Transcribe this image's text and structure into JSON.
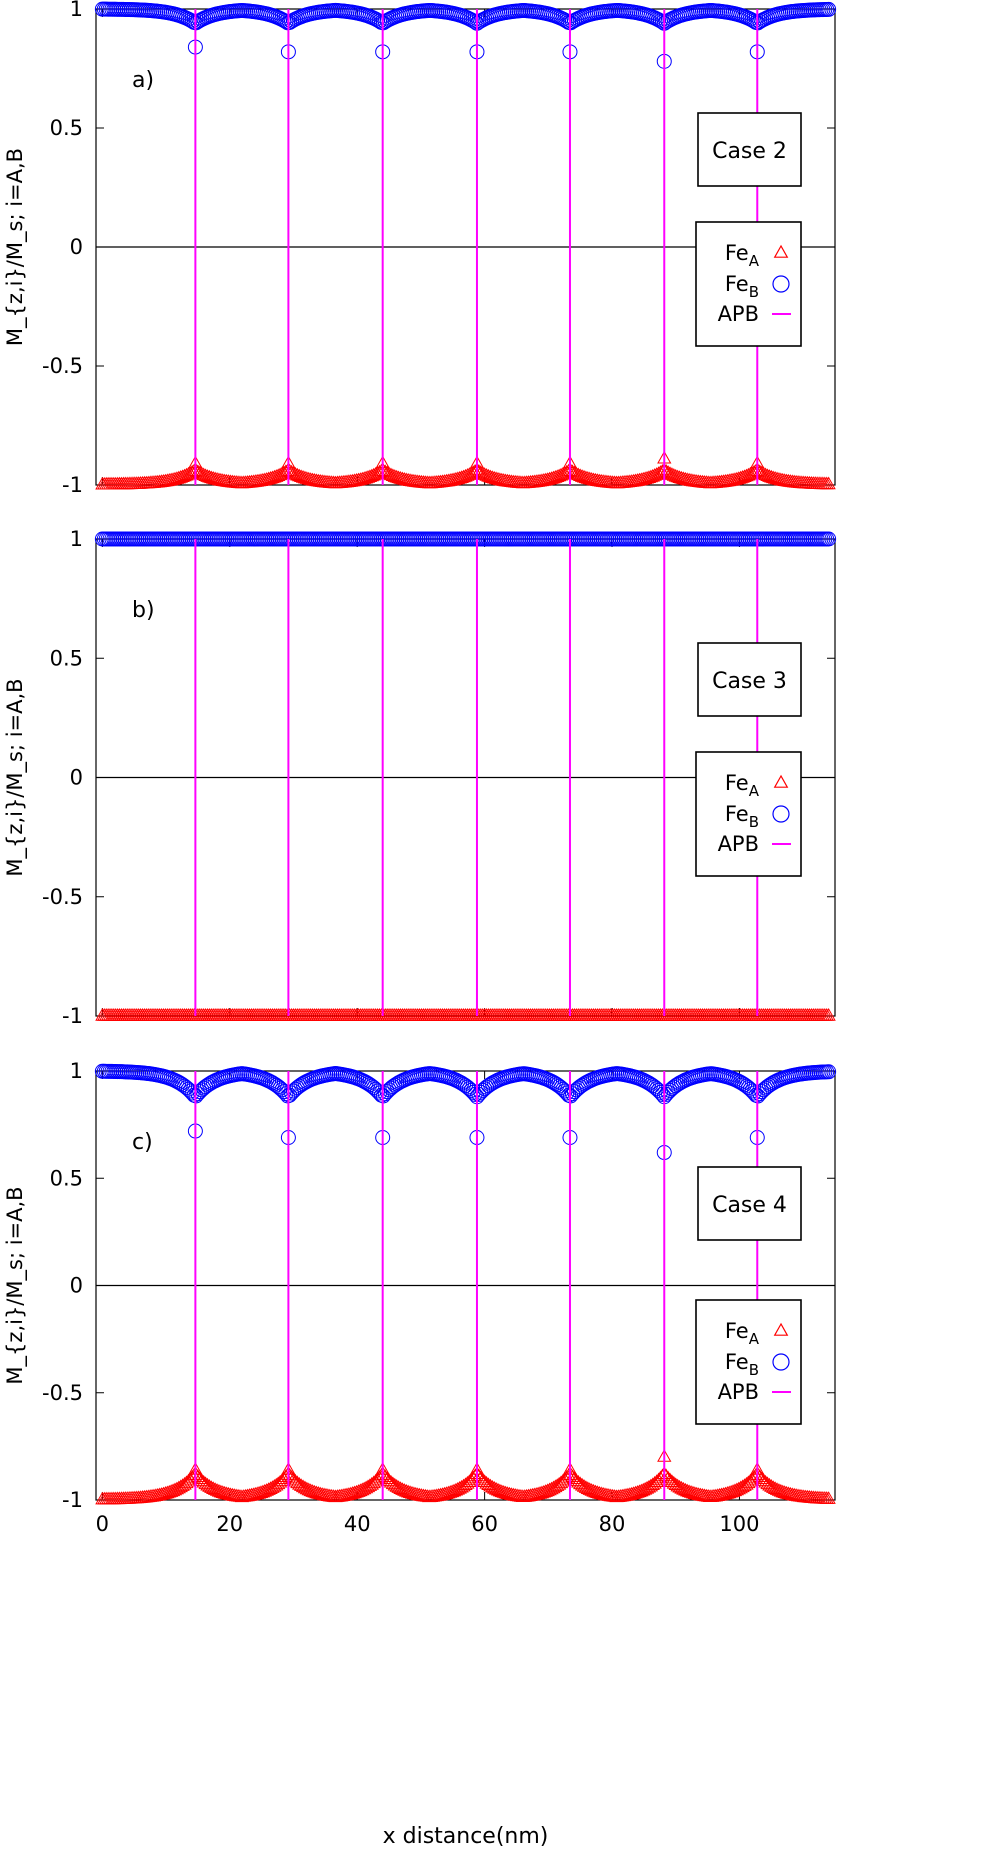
{
  "chart_data": [
    {
      "type": "scatter",
      "panel_label": "a)",
      "case_label": "Case 2",
      "ylabel": "M_{z,i}/M_s;  i=A,B",
      "xlabel": "",
      "xlim": [
        -1,
        115
      ],
      "ylim": [
        -1,
        1
      ],
      "xticks": [],
      "yticks": [
        -1,
        -0.5,
        0,
        0.5,
        1
      ],
      "ytick_labels": [
        "-1",
        "-0.5",
        "0",
        "0.5",
        "1"
      ],
      "apb_x": [
        14.6,
        29.2,
        44.0,
        58.8,
        73.4,
        88.2,
        102.8
      ],
      "zero_line": true,
      "series": [
        {
          "name": "Fe",
          "sub": "A",
          "marker": "triangle",
          "color": "#ff0000",
          "base": -1,
          "dip": 0.06,
          "apb_point": 0.09,
          "apb_off": {
            "5": 0.11
          }
        },
        {
          "name": "Fe",
          "sub": "B",
          "marker": "circle",
          "color": "#0000ff",
          "base": 1,
          "dip": 0.06,
          "apb_point": 0.18,
          "apb_off": {
            "0": 0.16,
            "5": 0.22
          }
        },
        {
          "name": "APB",
          "marker": "line",
          "color": "#ff00ff"
        }
      ]
    },
    {
      "type": "scatter",
      "panel_label": "b)",
      "case_label": "Case 3",
      "ylabel": "M_{z,i}/M_s;  i=A,B",
      "xlabel": "",
      "xlim": [
        -1,
        115
      ],
      "ylim": [
        -1,
        1
      ],
      "xticks": [],
      "yticks": [
        -1,
        -0.5,
        0,
        0.5,
        1
      ],
      "ytick_labels": [
        "-1",
        "-0.5",
        "0",
        "0.5",
        "1"
      ],
      "apb_x": [
        14.6,
        29.2,
        44.0,
        58.8,
        73.4,
        88.2,
        102.8
      ],
      "zero_line": true,
      "series": [
        {
          "name": "Fe",
          "sub": "A",
          "marker": "triangle",
          "color": "#ff0000",
          "base": -1,
          "dip": 0,
          "apb_point": 0,
          "apb_off": {}
        },
        {
          "name": "Fe",
          "sub": "B",
          "marker": "circle",
          "color": "#0000ff",
          "base": 1,
          "dip": 0,
          "apb_point": 0,
          "apb_off": {}
        },
        {
          "name": "APB",
          "marker": "line",
          "color": "#ff00ff"
        }
      ]
    },
    {
      "type": "scatter",
      "panel_label": "c)",
      "case_label": "Case 4",
      "ylabel": "M_{z,i}/M_s;  i=A,B",
      "xlabel": "x distance(nm)",
      "xlim": [
        -1,
        115
      ],
      "ylim": [
        -1,
        1
      ],
      "xticks": [
        0,
        20,
        40,
        60,
        80,
        100
      ],
      "yticks": [
        -1,
        -0.5,
        0,
        0.5,
        1
      ],
      "ytick_labels": [
        "-1",
        "-0.5",
        "0",
        "0.5",
        "1"
      ],
      "apb_x": [
        14.6,
        29.2,
        44.0,
        58.8,
        73.4,
        88.2,
        102.8
      ],
      "zero_line": true,
      "series": [
        {
          "name": "Fe",
          "sub": "A",
          "marker": "triangle",
          "color": "#ff0000",
          "base": -1,
          "dip": 0.12,
          "apb_point": 0.14,
          "apb_off": {
            "5": 0.2
          }
        },
        {
          "name": "Fe",
          "sub": "B",
          "marker": "circle",
          "color": "#0000ff",
          "base": 1,
          "dip": 0.12,
          "apb_point": 0.31,
          "apb_off": {
            "0": 0.28,
            "5": 0.38
          }
        },
        {
          "name": "APB",
          "marker": "line",
          "color": "#ff00ff"
        }
      ]
    }
  ]
}
